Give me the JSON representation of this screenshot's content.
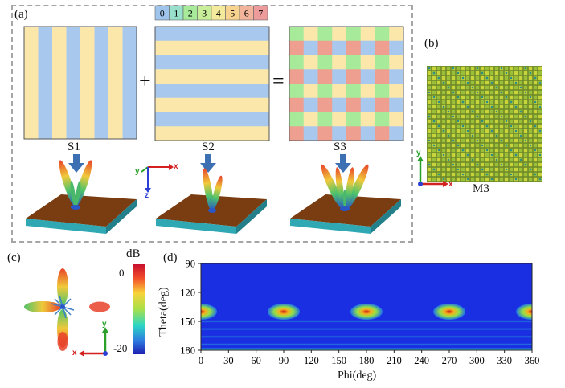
{
  "panel_a": {
    "label": "(a)",
    "operator_plus": "+",
    "operator_equals": "=",
    "coding_scale": {
      "digits": [
        "0",
        "1",
        "2",
        "3",
        "4",
        "5",
        "6",
        "7"
      ],
      "colors": [
        "#9fc5ec",
        "#98e0cc",
        "#a6ea9a",
        "#c8ee9a",
        "#f3ea9c",
        "#f7d38f",
        "#f2b49b",
        "#ed9b9b"
      ]
    },
    "sequences": [
      {
        "name": "S1",
        "pattern": "vertical-stripes",
        "colors": [
          "#fbe7aa",
          "#a9c8ee"
        ]
      },
      {
        "name": "S2",
        "pattern": "horizontal-stripes",
        "colors": [
          "#a9c8ee",
          "#fbe7aa"
        ]
      },
      {
        "name": "S3",
        "pattern": "checkerboard",
        "colors": [
          "#a6ea9a",
          "#fbe7aa",
          "#ee9f90",
          "#a9c8ee"
        ]
      }
    ],
    "axis_triad": {
      "x": "x",
      "y": "y",
      "z": "z"
    }
  },
  "panel_b": {
    "label": "(b)",
    "metasurface_name": "M3",
    "axis_x": "x",
    "axis_y": "y"
  },
  "panel_c": {
    "label": "(c)",
    "colorbar_unit": "dB",
    "colorbar_max": "0",
    "colorbar_min": "-20",
    "axis_x": "x",
    "axis_y": "y"
  },
  "chart_data": {
    "type": "heatmap",
    "panel_label": "(d)",
    "xlabel": "Phi(deg)",
    "ylabel": "Theta(deg)",
    "xlim": [
      0,
      360
    ],
    "ylim": [
      90,
      180
    ],
    "x_ticks": [
      "0",
      "30",
      "60",
      "90",
      "120",
      "150",
      "180",
      "210",
      "240",
      "270",
      "300",
      "330",
      "360"
    ],
    "y_ticks": [
      "90",
      "120",
      "150",
      "180"
    ],
    "background_level": "low",
    "main_beams": [
      {
        "phi": 0,
        "theta": 140
      },
      {
        "phi": 90,
        "theta": 140
      },
      {
        "phi": 180,
        "theta": 140
      },
      {
        "phi": 270,
        "theta": 140
      },
      {
        "phi": 360,
        "theta": 140
      }
    ]
  }
}
